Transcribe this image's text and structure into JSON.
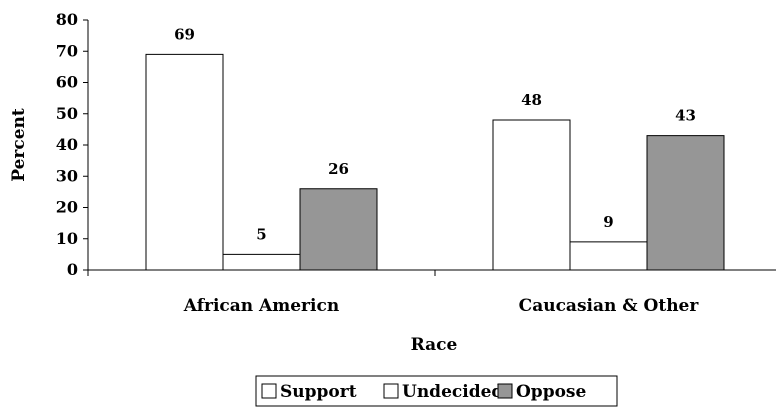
{
  "chart_data": {
    "type": "bar",
    "categories": [
      "African Americn",
      "Caucasian & Other"
    ],
    "series": [
      {
        "name": "Support",
        "values": [
          69,
          48
        ],
        "color": "#ffffff"
      },
      {
        "name": "Undecided",
        "values": [
          5,
          9
        ],
        "color": "#ffffff"
      },
      {
        "name": "Oppose",
        "values": [
          26,
          43
        ],
        "color": "#969696"
      }
    ],
    "title": "",
    "xlabel": "Race",
    "ylabel": "Percent",
    "ylim": [
      0,
      80
    ],
    "yticks": [
      "0",
      "10",
      "20",
      "30",
      "40",
      "50",
      "60",
      "70",
      "80"
    ],
    "grid": false,
    "legend_position": "bottom",
    "data_labels": true
  }
}
